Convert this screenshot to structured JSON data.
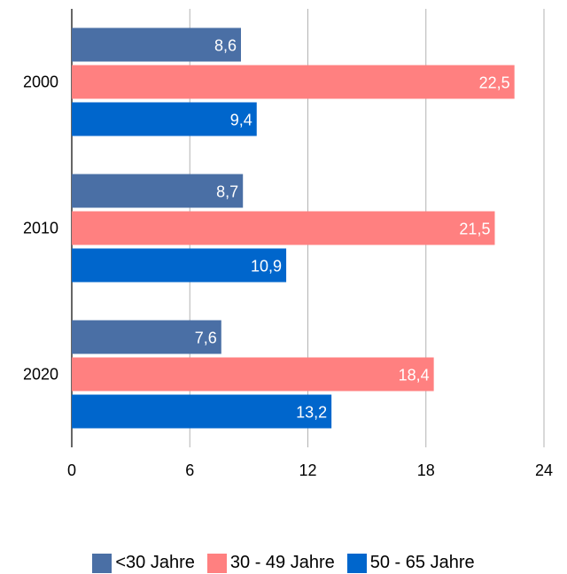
{
  "chart_data": {
    "type": "bar",
    "orientation": "horizontal",
    "categories": [
      "2000",
      "2010",
      "2020"
    ],
    "series": [
      {
        "name": "<30 Jahre",
        "values": [
          8.6,
          8.7,
          7.6
        ],
        "color": "#4a6fa5"
      },
      {
        "name": "30 - 49 Jahre",
        "values": [
          22.5,
          21.5,
          18.4
        ],
        "color": "#ff8080"
      },
      {
        "name": "50 - 65  Jahre",
        "values": [
          9.4,
          10.9,
          13.2
        ],
        "color": "#0066cc"
      }
    ],
    "data_labels": [
      [
        "8,6",
        "8,7",
        "7,6"
      ],
      [
        "22,5",
        "21,5",
        "18,4"
      ],
      [
        "9,4",
        "10,9",
        "13,2"
      ]
    ],
    "x_ticks": [
      "0",
      "6",
      "12",
      "18",
      "24"
    ],
    "xlim": [
      0,
      24
    ],
    "grid": true,
    "legend_position": "bottom"
  }
}
